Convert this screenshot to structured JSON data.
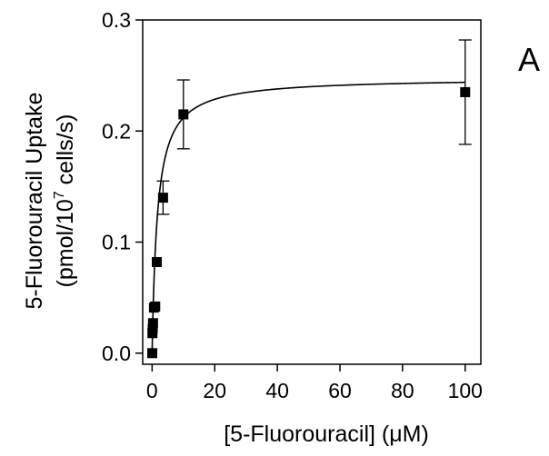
{
  "panel_label": "A",
  "chart_data": {
    "type": "scatter",
    "title": "",
    "xlabel": "[5-Fluorouracil] (μM)",
    "ylabel_line1": "5-Fluorouracil Uptake",
    "ylabel_line2_prefix": "(pmol/10",
    "ylabel_line2_sup": "7",
    "ylabel_line2_suffix": " cells/s)",
    "xlim": [
      -3,
      105
    ],
    "ylim": [
      -0.01,
      0.3
    ],
    "xticks": [
      0,
      20,
      40,
      60,
      80,
      100
    ],
    "xtick_labels": [
      "0",
      "20",
      "40",
      "60",
      "80",
      "100"
    ],
    "yticks": [
      0.0,
      0.1,
      0.2,
      0.3
    ],
    "ytick_labels": [
      "0.0",
      "0.1",
      "0.2",
      "0.3"
    ],
    "grid": false,
    "legend": "none",
    "series": [
      {
        "type": "scatter",
        "marker": "square",
        "color": "#000000",
        "points": [
          {
            "x": 0.05,
            "y": 0.0
          },
          {
            "x": 0.1,
            "y": 0.018
          },
          {
            "x": 0.2,
            "y": 0.022
          },
          {
            "x": 0.3,
            "y": 0.027
          },
          {
            "x": 0.6,
            "y": 0.041
          },
          {
            "x": 1.0,
            "y": 0.042
          },
          {
            "x": 1.5,
            "y": 0.082
          },
          {
            "x": 3.5,
            "y": 0.14,
            "err": 0.015
          },
          {
            "x": 10,
            "y": 0.215,
            "err": 0.031
          },
          {
            "x": 100,
            "y": 0.235,
            "err": 0.047
          }
        ]
      },
      {
        "type": "line",
        "model": "Michaelis-Menten fit",
        "color": "#000000",
        "vmax": 0.248,
        "km": 1.7,
        "x_range": [
          0,
          100
        ]
      }
    ]
  }
}
